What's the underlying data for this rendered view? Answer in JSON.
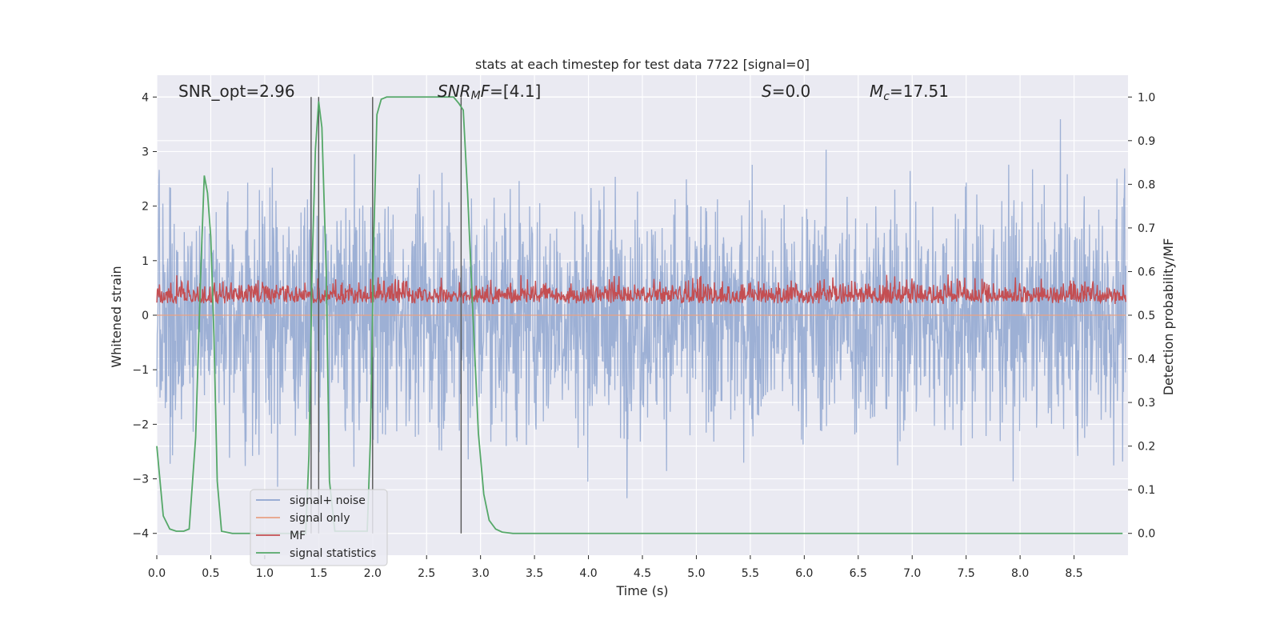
{
  "chart_data": {
    "type": "line",
    "title": "stats at each timestep for test data 7722 [signal=0]",
    "xlabel": "Time (s)",
    "ylabel": "Whitened strain",
    "ylabel_right": "Detection probability/MF",
    "xlim": [
      0.0,
      9.0
    ],
    "ylim": [
      -4.4,
      4.4
    ],
    "ylim_right": [
      -0.05,
      1.05
    ],
    "xticks": [
      0.0,
      0.5,
      1.0,
      1.5,
      2.0,
      2.5,
      3.0,
      3.5,
      4.0,
      4.5,
      5.0,
      5.5,
      6.0,
      6.5,
      7.0,
      7.5,
      8.0,
      8.5
    ],
    "xtick_labels": [
      "0.0",
      "0.5",
      "1.0",
      "1.5",
      "2.0",
      "2.5",
      "3.0",
      "3.5",
      "4.0",
      "4.5",
      "5.0",
      "5.5",
      "6.0",
      "6.5",
      "7.0",
      "7.5",
      "8.0",
      "8.5"
    ],
    "yticks": [
      -4,
      -3,
      -2,
      -1,
      0,
      1,
      2,
      3,
      4
    ],
    "ytick_labels": [
      "−4",
      "−3",
      "−2",
      "−1",
      "0",
      "1",
      "2",
      "3",
      "4"
    ],
    "yticks_right": [
      0.0,
      0.1,
      0.2,
      0.3,
      0.4,
      0.5,
      0.6,
      0.7,
      0.8,
      0.9,
      1.0
    ],
    "ytick_labels_right": [
      "0.0",
      "0.1",
      "0.2",
      "0.3",
      "0.4",
      "0.5",
      "0.6",
      "0.7",
      "0.8",
      "0.9",
      "1.0"
    ],
    "grid": true,
    "legend_position": "lower-left",
    "annotations": [
      {
        "name": "snr-opt",
        "text": "SNR_opt=2.96",
        "x": 0.2,
        "y": 4.1
      },
      {
        "name": "snr-mf",
        "text": "SNR_MF=[4.1]",
        "x": 2.6,
        "y": 4.1
      },
      {
        "name": "s-stat",
        "text": "S=0.0",
        "x": 5.65,
        "y": 4.1
      },
      {
        "name": "chirp-mass",
        "text": "M_c=17.51",
        "x": 6.65,
        "y": 4.1
      }
    ],
    "vertical_markers": [
      1.43,
      1.5,
      2.0,
      2.82
    ],
    "vertical_marker_range": [
      0.0,
      1.0
    ],
    "series": [
      {
        "name": "signal+ noise",
        "axis": "left",
        "color": "#8fa6d0",
        "kind": "noise",
        "description_range": [
          -3.9,
          4.0
        ],
        "sample_rate_hz": 1024
      },
      {
        "name": "signal only",
        "axis": "left",
        "color": "#e8a184",
        "kind": "flat",
        "values": [
          0.0
        ]
      },
      {
        "name": "MF",
        "axis": "right",
        "color": "#c44e52",
        "kind": "mf",
        "range": [
          0.5,
          0.62
        ]
      },
      {
        "name": "signal statistics",
        "axis": "right",
        "color": "#55a868",
        "kind": "line",
        "x": [
          0.0,
          0.06,
          0.12,
          0.18,
          0.25,
          0.3,
          0.36,
          0.41,
          0.44,
          0.47,
          0.5,
          0.53,
          0.56,
          0.6,
          0.7,
          1.0,
          1.38,
          1.41,
          1.44,
          1.47,
          1.5,
          1.53,
          1.57,
          1.6,
          1.65,
          1.95,
          1.98,
          2.01,
          2.04,
          2.08,
          2.13,
          2.6,
          2.75,
          2.8,
          2.84,
          2.88,
          2.93,
          2.98,
          3.03,
          3.08,
          3.14,
          3.2,
          3.3,
          3.5,
          8.95
        ],
        "y": [
          0.2,
          0.04,
          0.01,
          0.005,
          0.005,
          0.01,
          0.22,
          0.62,
          0.82,
          0.78,
          0.68,
          0.45,
          0.12,
          0.005,
          0.0,
          0.0,
          0.0,
          0.18,
          0.62,
          0.88,
          0.99,
          0.93,
          0.6,
          0.12,
          0.005,
          0.005,
          0.22,
          0.67,
          0.96,
          0.995,
          1.0,
          1.0,
          1.0,
          0.985,
          0.97,
          0.78,
          0.5,
          0.23,
          0.09,
          0.03,
          0.01,
          0.003,
          0.0,
          0.0,
          0.0
        ]
      }
    ]
  }
}
